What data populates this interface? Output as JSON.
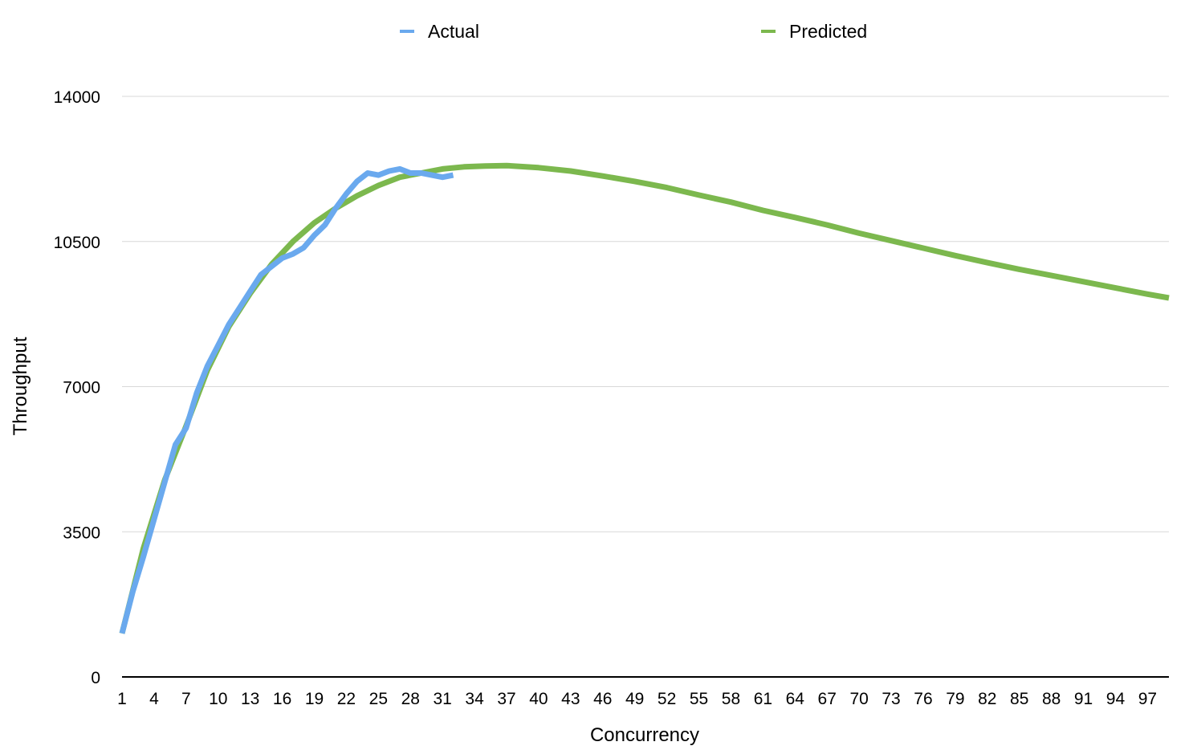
{
  "chart_data": {
    "type": "line",
    "title": "",
    "xlabel": "Concurrency",
    "ylabel": "Throughput",
    "ylim": [
      0,
      14000
    ],
    "yticks": [
      "0",
      "3500",
      "7000",
      "10500",
      "14000"
    ],
    "xlim": [
      1,
      99
    ],
    "xticks": [
      "1",
      "4",
      "7",
      "10",
      "13",
      "16",
      "19",
      "22",
      "25",
      "28",
      "31",
      "34",
      "37",
      "40",
      "43",
      "46",
      "49",
      "52",
      "55",
      "58",
      "61",
      "64",
      "67",
      "70",
      "73",
      "76",
      "79",
      "82",
      "85",
      "88",
      "91",
      "94",
      "97"
    ],
    "grid": true,
    "legend": "top-center",
    "series": [
      {
        "name": "Actual",
        "color": "#6aa9ee",
        "x": [
          1,
          2,
          3,
          4,
          5,
          6,
          7,
          8,
          9,
          10,
          11,
          12,
          13,
          14,
          15,
          16,
          17,
          18,
          19,
          20,
          21,
          22,
          23,
          24,
          25,
          26,
          27,
          28,
          29,
          30,
          31,
          32
        ],
        "y": [
          1050,
          2050,
          2900,
          3800,
          4700,
          5600,
          6000,
          6850,
          7500,
          8000,
          8500,
          8900,
          9300,
          9700,
          9900,
          10100,
          10200,
          10350,
          10650,
          10900,
          11300,
          11650,
          11950,
          12150,
          12100,
          12200,
          12250,
          12150,
          12150,
          12100,
          12050,
          12100
        ]
      },
      {
        "name": "Predicted",
        "color": "#7cb84e",
        "x": [
          1,
          3,
          5,
          7,
          9,
          11,
          13,
          15,
          17,
          19,
          21,
          23,
          25,
          27,
          29,
          31,
          33,
          35,
          37,
          40,
          43,
          46,
          49,
          52,
          55,
          58,
          61,
          64,
          67,
          70,
          73,
          76,
          79,
          82,
          85,
          88,
          91,
          94,
          97,
          99
        ],
        "y": [
          1050,
          3100,
          4750,
          6050,
          7400,
          8450,
          9250,
          9950,
          10500,
          10950,
          11300,
          11600,
          11850,
          12050,
          12150,
          12250,
          12300,
          12320,
          12330,
          12280,
          12200,
          12080,
          11950,
          11800,
          11620,
          11450,
          11250,
          11080,
          10900,
          10700,
          10520,
          10340,
          10160,
          9990,
          9830,
          9680,
          9530,
          9380,
          9230,
          9140
        ]
      }
    ]
  }
}
